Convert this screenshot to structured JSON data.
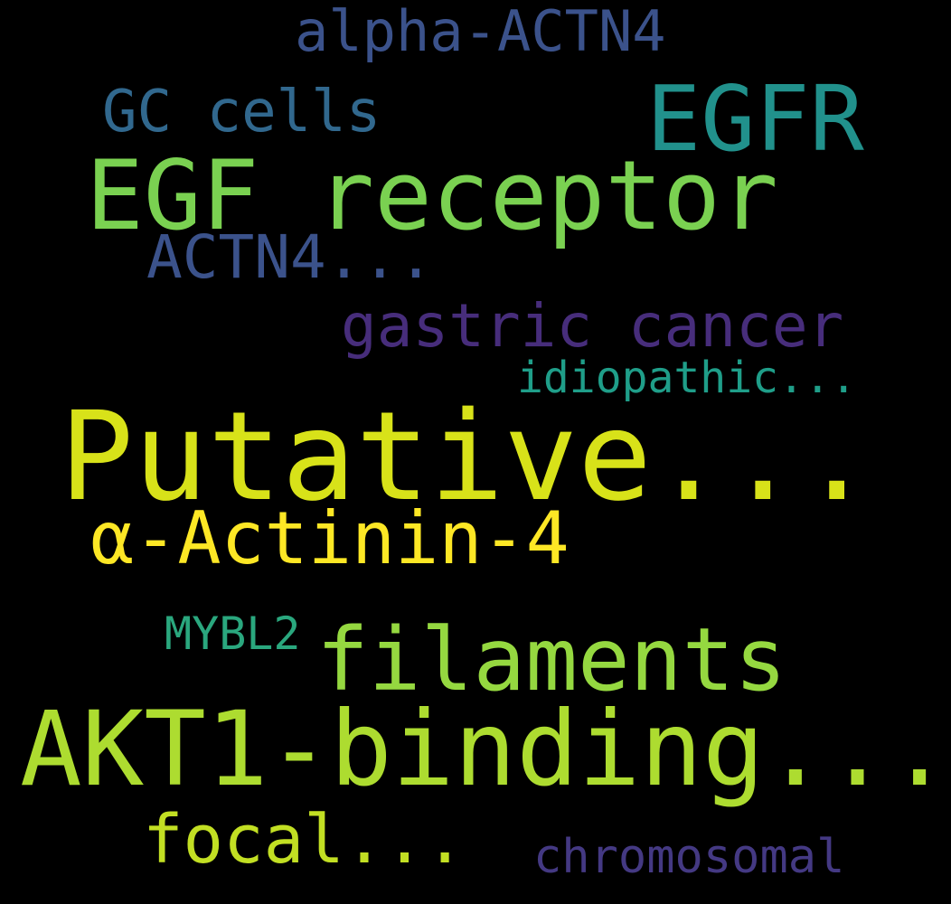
{
  "background_color": "#000000",
  "words": [
    {
      "text": "alpha-ACTN4",
      "color": "#3b528b"
    },
    {
      "text": "EGFR",
      "color": "#21918c"
    },
    {
      "text": "GC cells",
      "color": "#31688e"
    },
    {
      "text": "EGF receptor",
      "color": "#7ad151"
    },
    {
      "text": "ACTN4...",
      "color": "#3b528b"
    },
    {
      "text": "gastric cancer",
      "color": "#472d7b"
    },
    {
      "text": "idiopathic...",
      "color": "#1f9e89"
    },
    {
      "text": "Putative...",
      "color": "#d8e219"
    },
    {
      "text": "α-Actinin-4",
      "color": "#fde725"
    },
    {
      "text": "MYBL2",
      "color": "#2aa77e"
    },
    {
      "text": "filaments",
      "color": "#95d840"
    },
    {
      "text": "AKT1-binding...",
      "color": "#addc30"
    },
    {
      "text": "focal...",
      "color": "#c2df23"
    },
    {
      "text": "chromosomal",
      "color": "#443983"
    }
  ]
}
